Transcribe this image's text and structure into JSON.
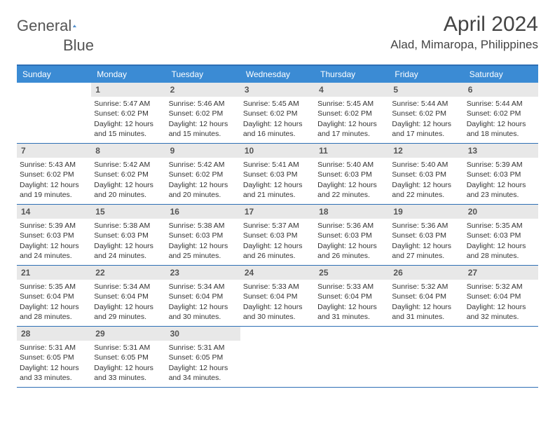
{
  "brand": {
    "word1": "General",
    "word2": "Blue"
  },
  "title": "April 2024",
  "location": "Alad, Mimaropa, Philippines",
  "colors": {
    "header_bar": "#3b8bd4",
    "rule": "#2d6fb5",
    "daynum_bg": "#e8e8e8",
    "text": "#333333",
    "brand_gray": "#555555",
    "brand_blue": "#3b7fc4",
    "bg": "#ffffff"
  },
  "dow": [
    "Sunday",
    "Monday",
    "Tuesday",
    "Wednesday",
    "Thursday",
    "Friday",
    "Saturday"
  ],
  "weeks": [
    [
      {
        "n": "",
        "sunrise": "",
        "sunset": "",
        "daylight": ""
      },
      {
        "n": "1",
        "sunrise": "Sunrise: 5:47 AM",
        "sunset": "Sunset: 6:02 PM",
        "daylight": "Daylight: 12 hours and 15 minutes."
      },
      {
        "n": "2",
        "sunrise": "Sunrise: 5:46 AM",
        "sunset": "Sunset: 6:02 PM",
        "daylight": "Daylight: 12 hours and 15 minutes."
      },
      {
        "n": "3",
        "sunrise": "Sunrise: 5:45 AM",
        "sunset": "Sunset: 6:02 PM",
        "daylight": "Daylight: 12 hours and 16 minutes."
      },
      {
        "n": "4",
        "sunrise": "Sunrise: 5:45 AM",
        "sunset": "Sunset: 6:02 PM",
        "daylight": "Daylight: 12 hours and 17 minutes."
      },
      {
        "n": "5",
        "sunrise": "Sunrise: 5:44 AM",
        "sunset": "Sunset: 6:02 PM",
        "daylight": "Daylight: 12 hours and 17 minutes."
      },
      {
        "n": "6",
        "sunrise": "Sunrise: 5:44 AM",
        "sunset": "Sunset: 6:02 PM",
        "daylight": "Daylight: 12 hours and 18 minutes."
      }
    ],
    [
      {
        "n": "7",
        "sunrise": "Sunrise: 5:43 AM",
        "sunset": "Sunset: 6:02 PM",
        "daylight": "Daylight: 12 hours and 19 minutes."
      },
      {
        "n": "8",
        "sunrise": "Sunrise: 5:42 AM",
        "sunset": "Sunset: 6:02 PM",
        "daylight": "Daylight: 12 hours and 20 minutes."
      },
      {
        "n": "9",
        "sunrise": "Sunrise: 5:42 AM",
        "sunset": "Sunset: 6:02 PM",
        "daylight": "Daylight: 12 hours and 20 minutes."
      },
      {
        "n": "10",
        "sunrise": "Sunrise: 5:41 AM",
        "sunset": "Sunset: 6:03 PM",
        "daylight": "Daylight: 12 hours and 21 minutes."
      },
      {
        "n": "11",
        "sunrise": "Sunrise: 5:40 AM",
        "sunset": "Sunset: 6:03 PM",
        "daylight": "Daylight: 12 hours and 22 minutes."
      },
      {
        "n": "12",
        "sunrise": "Sunrise: 5:40 AM",
        "sunset": "Sunset: 6:03 PM",
        "daylight": "Daylight: 12 hours and 22 minutes."
      },
      {
        "n": "13",
        "sunrise": "Sunrise: 5:39 AM",
        "sunset": "Sunset: 6:03 PM",
        "daylight": "Daylight: 12 hours and 23 minutes."
      }
    ],
    [
      {
        "n": "14",
        "sunrise": "Sunrise: 5:39 AM",
        "sunset": "Sunset: 6:03 PM",
        "daylight": "Daylight: 12 hours and 24 minutes."
      },
      {
        "n": "15",
        "sunrise": "Sunrise: 5:38 AM",
        "sunset": "Sunset: 6:03 PM",
        "daylight": "Daylight: 12 hours and 24 minutes."
      },
      {
        "n": "16",
        "sunrise": "Sunrise: 5:38 AM",
        "sunset": "Sunset: 6:03 PM",
        "daylight": "Daylight: 12 hours and 25 minutes."
      },
      {
        "n": "17",
        "sunrise": "Sunrise: 5:37 AM",
        "sunset": "Sunset: 6:03 PM",
        "daylight": "Daylight: 12 hours and 26 minutes."
      },
      {
        "n": "18",
        "sunrise": "Sunrise: 5:36 AM",
        "sunset": "Sunset: 6:03 PM",
        "daylight": "Daylight: 12 hours and 26 minutes."
      },
      {
        "n": "19",
        "sunrise": "Sunrise: 5:36 AM",
        "sunset": "Sunset: 6:03 PM",
        "daylight": "Daylight: 12 hours and 27 minutes."
      },
      {
        "n": "20",
        "sunrise": "Sunrise: 5:35 AM",
        "sunset": "Sunset: 6:03 PM",
        "daylight": "Daylight: 12 hours and 28 minutes."
      }
    ],
    [
      {
        "n": "21",
        "sunrise": "Sunrise: 5:35 AM",
        "sunset": "Sunset: 6:04 PM",
        "daylight": "Daylight: 12 hours and 28 minutes."
      },
      {
        "n": "22",
        "sunrise": "Sunrise: 5:34 AM",
        "sunset": "Sunset: 6:04 PM",
        "daylight": "Daylight: 12 hours and 29 minutes."
      },
      {
        "n": "23",
        "sunrise": "Sunrise: 5:34 AM",
        "sunset": "Sunset: 6:04 PM",
        "daylight": "Daylight: 12 hours and 30 minutes."
      },
      {
        "n": "24",
        "sunrise": "Sunrise: 5:33 AM",
        "sunset": "Sunset: 6:04 PM",
        "daylight": "Daylight: 12 hours and 30 minutes."
      },
      {
        "n": "25",
        "sunrise": "Sunrise: 5:33 AM",
        "sunset": "Sunset: 6:04 PM",
        "daylight": "Daylight: 12 hours and 31 minutes."
      },
      {
        "n": "26",
        "sunrise": "Sunrise: 5:32 AM",
        "sunset": "Sunset: 6:04 PM",
        "daylight": "Daylight: 12 hours and 31 minutes."
      },
      {
        "n": "27",
        "sunrise": "Sunrise: 5:32 AM",
        "sunset": "Sunset: 6:04 PM",
        "daylight": "Daylight: 12 hours and 32 minutes."
      }
    ],
    [
      {
        "n": "28",
        "sunrise": "Sunrise: 5:31 AM",
        "sunset": "Sunset: 6:05 PM",
        "daylight": "Daylight: 12 hours and 33 minutes."
      },
      {
        "n": "29",
        "sunrise": "Sunrise: 5:31 AM",
        "sunset": "Sunset: 6:05 PM",
        "daylight": "Daylight: 12 hours and 33 minutes."
      },
      {
        "n": "30",
        "sunrise": "Sunrise: 5:31 AM",
        "sunset": "Sunset: 6:05 PM",
        "daylight": "Daylight: 12 hours and 34 minutes."
      },
      {
        "n": "",
        "sunrise": "",
        "sunset": "",
        "daylight": ""
      },
      {
        "n": "",
        "sunrise": "",
        "sunset": "",
        "daylight": ""
      },
      {
        "n": "",
        "sunrise": "",
        "sunset": "",
        "daylight": ""
      },
      {
        "n": "",
        "sunrise": "",
        "sunset": "",
        "daylight": ""
      }
    ]
  ]
}
